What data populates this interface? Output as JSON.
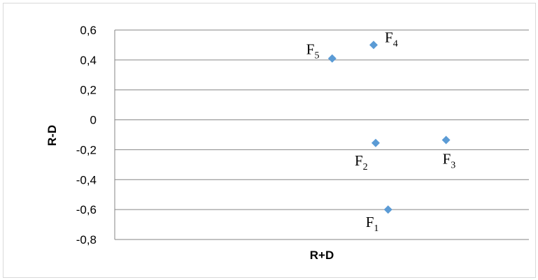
{
  "chart_data": {
    "type": "scatter",
    "title": "",
    "xlabel": "R+D",
    "ylabel": "R-D",
    "ylim": [
      -0.8,
      0.6
    ],
    "yticks": [
      0.6,
      0.4,
      0.2,
      0,
      -0.2,
      -0.4,
      -0.6,
      -0.8
    ],
    "ytick_labels": [
      "0,6",
      "0,4",
      "0,2",
      "0",
      "-0,2",
      "-0,4",
      "-0,6",
      "-0,8"
    ],
    "grid": true,
    "marker": "diamond",
    "marker_color": "#5b9bd5",
    "points": [
      {
        "base": "F",
        "sub": "1",
        "x": 0.66,
        "y": -0.6
      },
      {
        "base": "F",
        "sub": "2",
        "x": 0.63,
        "y": -0.155
      },
      {
        "base": "F",
        "sub": "3",
        "x": 0.8,
        "y": -0.135
      },
      {
        "base": "F",
        "sub": "4",
        "x": 0.625,
        "y": 0.5
      },
      {
        "base": "F",
        "sub": "5",
        "x": 0.525,
        "y": 0.41
      }
    ]
  }
}
